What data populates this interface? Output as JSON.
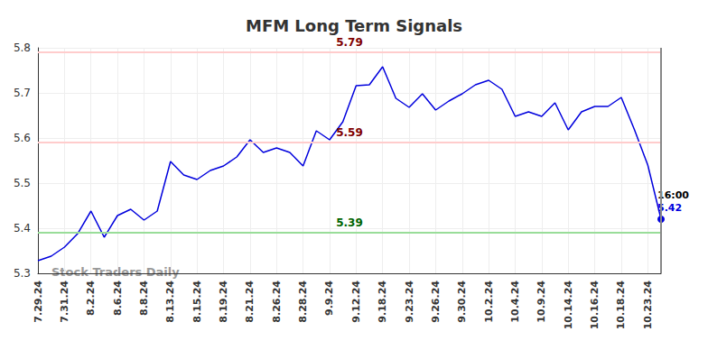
{
  "chart_data": {
    "type": "line",
    "title": "MFM Long Term Signals",
    "categories": [
      "7.29.24",
      null,
      "7.31.24",
      null,
      "8.2.24",
      null,
      "8.6.24",
      null,
      "8.8.24",
      null,
      "8.13.24",
      null,
      "8.15.24",
      null,
      "8.19.24",
      null,
      "8.21.24",
      null,
      "8.26.24",
      null,
      "8.28.24",
      null,
      "9.9.24",
      null,
      "9.12.24",
      null,
      "9.18.24",
      null,
      "9.23.24",
      null,
      "9.26.24",
      null,
      "9.30.24",
      null,
      "10.2.24",
      null,
      "10.4.24",
      null,
      "10.9.24",
      null,
      "10.14.24",
      null,
      "10.16.24",
      null,
      "10.18.24",
      null,
      "10.23.24",
      null
    ],
    "values": [
      5.328,
      5.338,
      5.358,
      5.388,
      5.438,
      5.38,
      5.428,
      5.442,
      5.418,
      5.438,
      5.548,
      5.518,
      5.508,
      5.528,
      5.538,
      5.558,
      5.596,
      5.568,
      5.578,
      5.568,
      5.538,
      5.616,
      5.596,
      5.636,
      5.716,
      5.718,
      5.758,
      5.688,
      5.668,
      5.698,
      5.662,
      5.682,
      5.698,
      5.718,
      5.728,
      5.708,
      5.648,
      5.658,
      5.648,
      5.678,
      5.618,
      5.658,
      5.67,
      5.67,
      5.69,
      5.618,
      5.54,
      5.42
    ],
    "color": "#0000dd",
    "marker": "circle",
    "ylim": [
      5.3,
      5.8
    ],
    "yticks": [
      5.3,
      5.4,
      5.5,
      5.6,
      5.7,
      5.8
    ],
    "grid": true,
    "reference_lines": [
      {
        "value": 5.79,
        "label": "5.79",
        "color": "#ffcccc"
      },
      {
        "value": 5.59,
        "label": "5.59",
        "color": "#ffcccc"
      },
      {
        "value": 5.39,
        "label": "5.39",
        "color": "#99dd99"
      }
    ],
    "last_point": {
      "time": "16:00",
      "value_label": "5.42"
    },
    "watermark": "Stock Traders Daily"
  }
}
